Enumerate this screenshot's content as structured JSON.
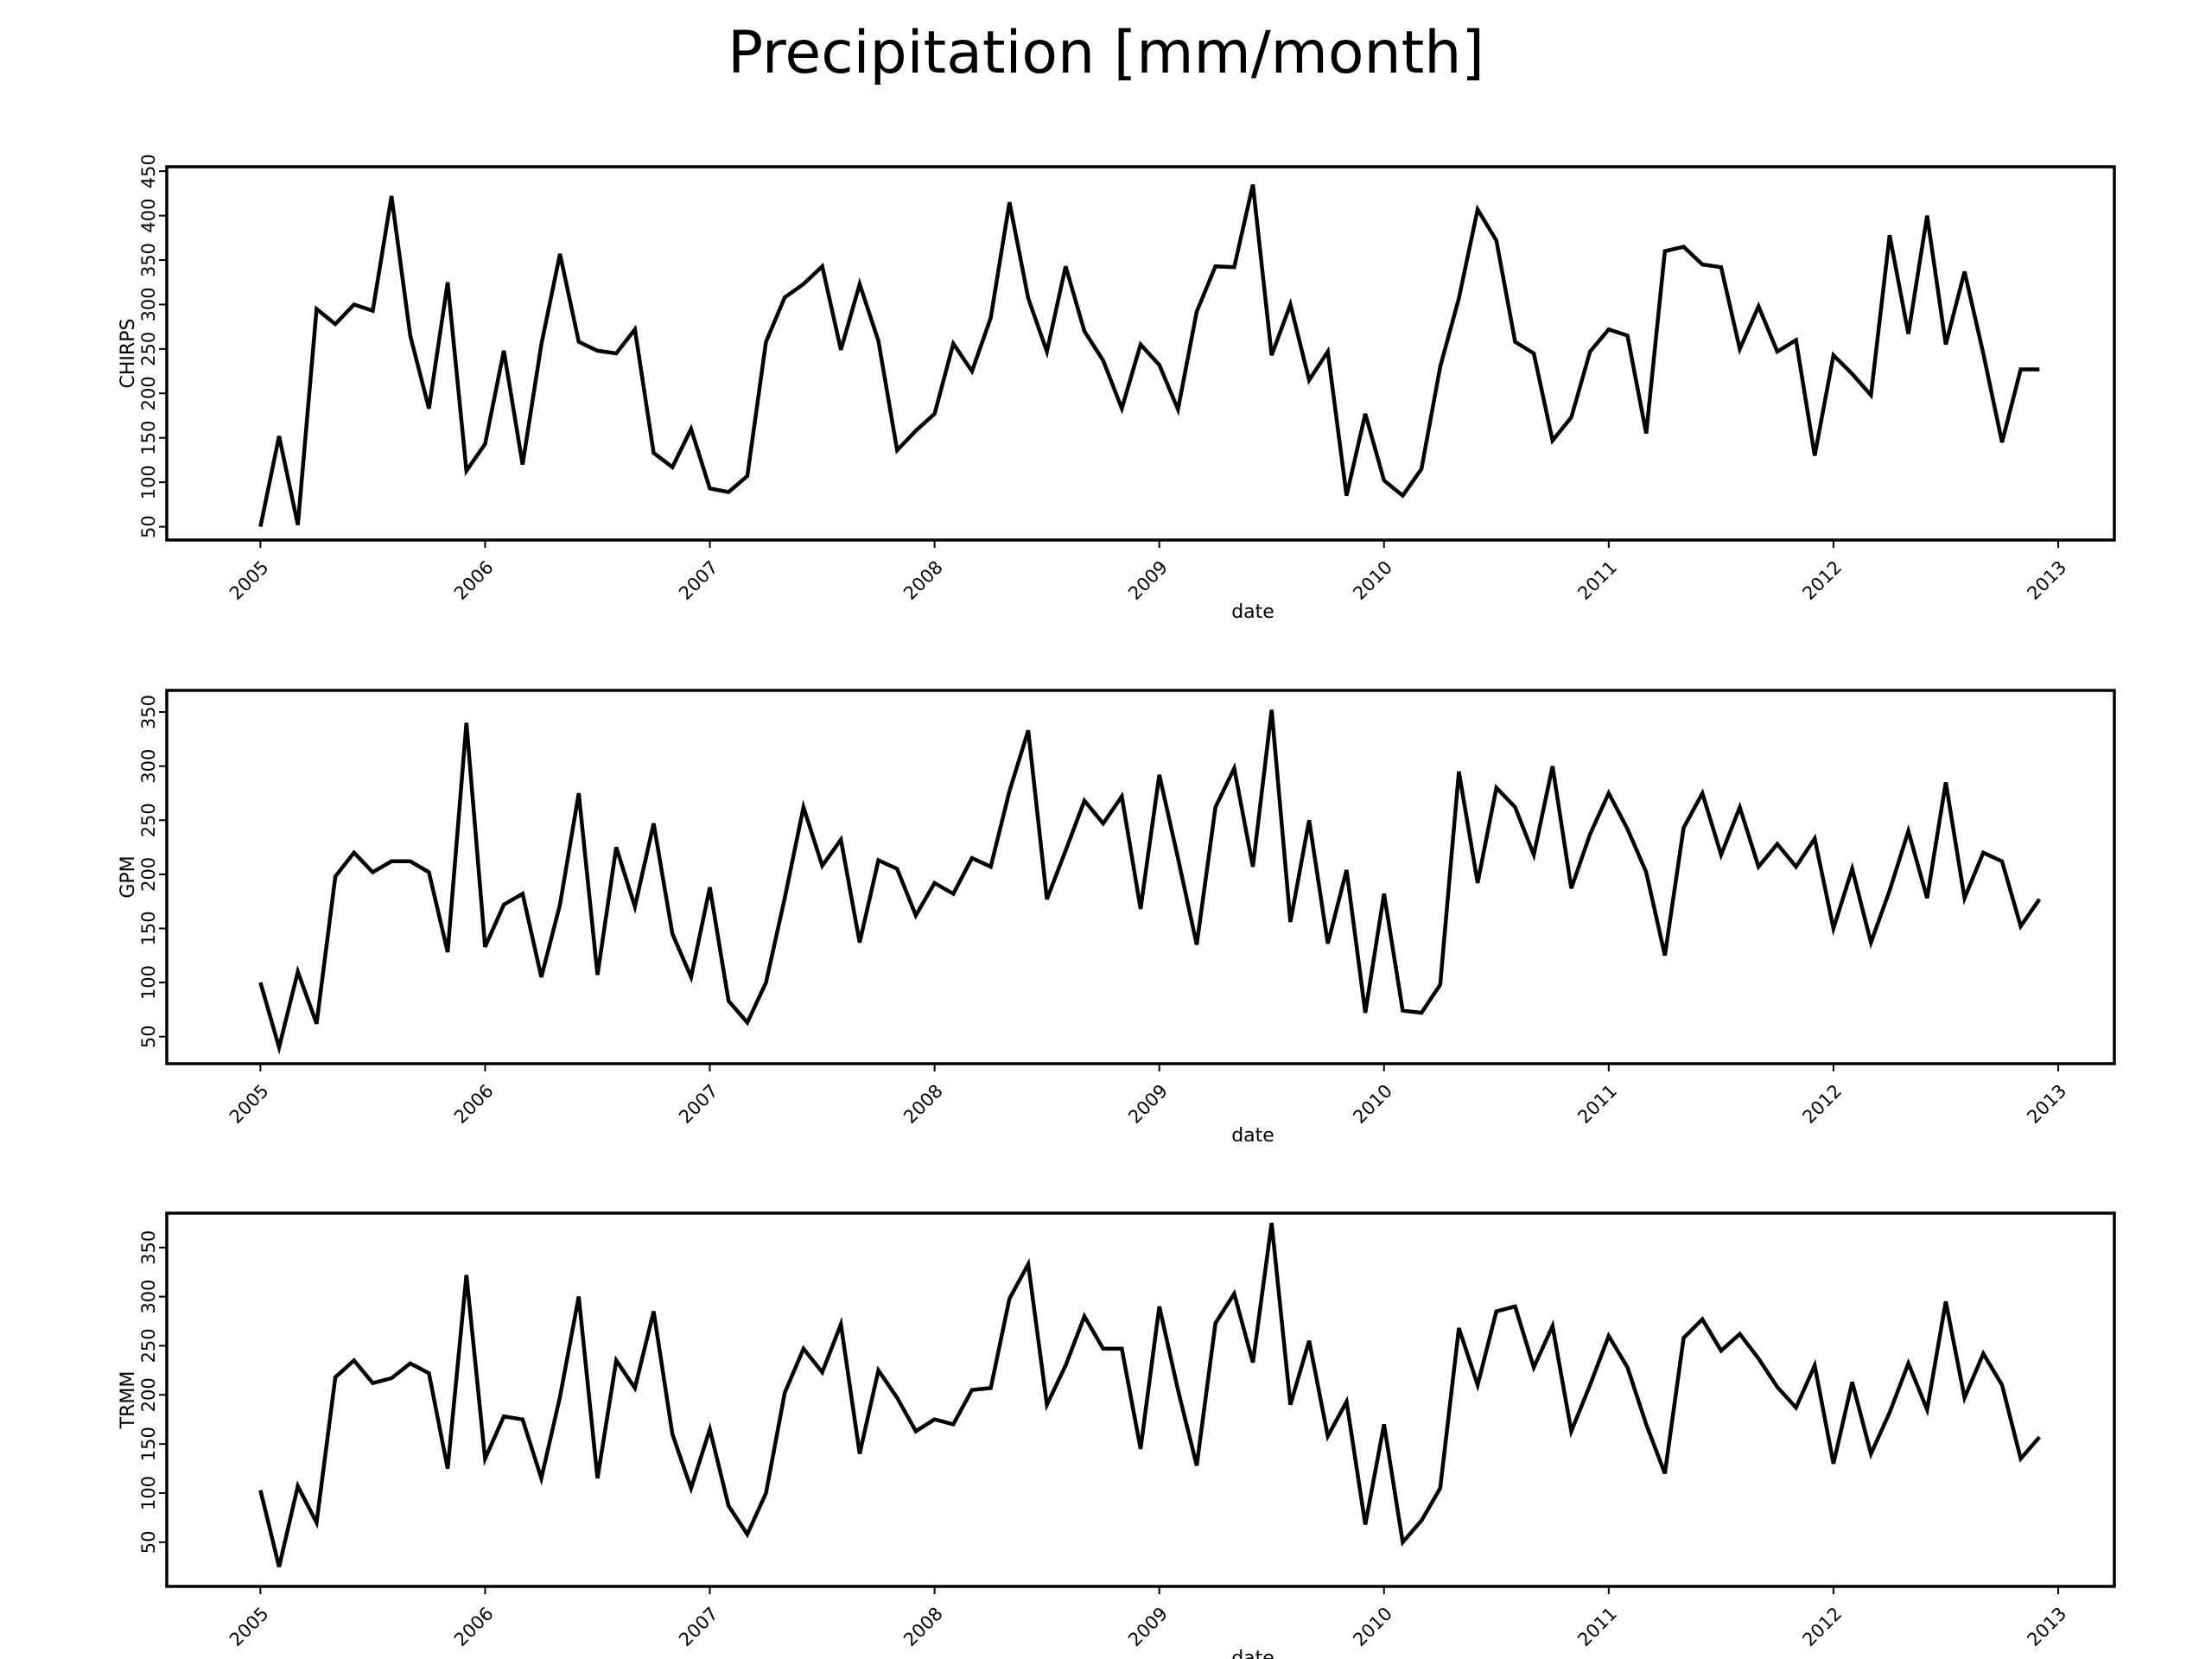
{
  "title": "Precipitation [mm/month]",
  "colors": {
    "line": "#000000",
    "frame": "#000000",
    "background": "#ffffff"
  },
  "chart_data": [
    {
      "type": "line",
      "ylabel": "CHIRPS",
      "xlabel": "date",
      "x_start": "2005-01",
      "x_step": "1 month",
      "xticks": [
        "2005",
        "2006",
        "2007",
        "2008",
        "2009",
        "2010",
        "2011",
        "2012",
        "2013"
      ],
      "xlim": [
        "2004-08",
        "2013-04"
      ],
      "yticks": [
        50,
        100,
        150,
        200,
        250,
        300,
        350,
        400,
        450
      ],
      "ylim": [
        35,
        455
      ],
      "grid": false,
      "values": [
        50,
        152,
        52,
        295,
        278,
        300,
        293,
        422,
        265,
        183,
        325,
        113,
        143,
        248,
        120,
        255,
        357,
        258,
        248,
        245,
        272,
        133,
        117,
        160,
        93,
        89,
        107,
        258,
        308,
        323,
        343,
        249,
        323,
        259,
        136,
        158,
        177,
        256,
        225,
        285,
        415,
        307,
        247,
        343,
        270,
        237,
        183,
        255,
        232,
        182,
        292,
        343,
        342,
        435,
        243,
        300,
        215,
        247,
        85,
        177,
        102,
        85,
        115,
        230,
        307,
        407,
        372,
        258,
        245,
        147,
        173,
        247,
        272,
        265,
        155,
        360,
        365,
        345,
        342,
        250,
        298,
        247,
        260,
        130,
        243,
        222,
        198,
        378,
        267,
        400,
        255,
        337,
        245,
        145,
        227,
        227
      ]
    },
    {
      "type": "line",
      "ylabel": "GPM",
      "xlabel": "date",
      "x_start": "2005-01",
      "x_step": "1 month",
      "xticks": [
        "2005",
        "2006",
        "2007",
        "2008",
        "2009",
        "2010",
        "2011",
        "2012",
        "2013"
      ],
      "xlim": [
        "2004-08",
        "2013-04"
      ],
      "yticks": [
        50,
        100,
        150,
        200,
        250,
        300,
        350
      ],
      "ylim": [
        25,
        370
      ],
      "grid": false,
      "values": [
        100,
        40,
        110,
        62,
        198,
        220,
        202,
        212,
        212,
        202,
        128,
        340,
        133,
        172,
        182,
        105,
        172,
        275,
        107,
        225,
        170,
        247,
        145,
        105,
        188,
        83,
        63,
        100,
        178,
        262,
        208,
        232,
        137,
        213,
        205,
        162,
        192,
        182,
        215,
        207,
        277,
        333,
        177,
        222,
        268,
        247,
        272,
        168,
        292,
        215,
        135,
        262,
        298,
        207,
        352,
        156,
        250,
        136,
        204,
        72,
        182,
        74,
        72,
        98,
        295,
        192,
        280,
        262,
        218,
        300,
        187,
        237,
        275,
        242,
        202,
        125,
        243,
        275,
        218,
        262,
        207,
        228,
        207,
        233,
        150,
        205,
        137,
        185,
        240,
        178,
        285,
        178,
        220,
        212,
        152,
        177
      ]
    },
    {
      "type": "line",
      "ylabel": "TRMM",
      "xlabel": "date",
      "x_start": "2005-01",
      "x_step": "1 month",
      "xticks": [
        "2005",
        "2006",
        "2007",
        "2008",
        "2009",
        "2010",
        "2011",
        "2012",
        "2013"
      ],
      "xlim": [
        "2004-08",
        "2013-04"
      ],
      "yticks": [
        50,
        100,
        150,
        200,
        250,
        300,
        350
      ],
      "ylim": [
        5,
        385
      ],
      "grid": false,
      "values": [
        103,
        25,
        107,
        70,
        218,
        235,
        212,
        217,
        232,
        222,
        125,
        322,
        135,
        178,
        175,
        115,
        198,
        300,
        115,
        235,
        207,
        285,
        160,
        105,
        165,
        87,
        58,
        100,
        202,
        247,
        223,
        272,
        140,
        225,
        197,
        163,
        175,
        170,
        205,
        207,
        298,
        333,
        190,
        230,
        280,
        247,
        247,
        145,
        290,
        205,
        128,
        273,
        303,
        233,
        375,
        190,
        255,
        158,
        193,
        68,
        170,
        50,
        72,
        105,
        268,
        210,
        285,
        290,
        228,
        270,
        163,
        210,
        260,
        228,
        170,
        120,
        258,
        277,
        245,
        262,
        237,
        208,
        187,
        230,
        130,
        213,
        140,
        182,
        232,
        185,
        295,
        197,
        242,
        210,
        135,
        157
      ]
    }
  ]
}
